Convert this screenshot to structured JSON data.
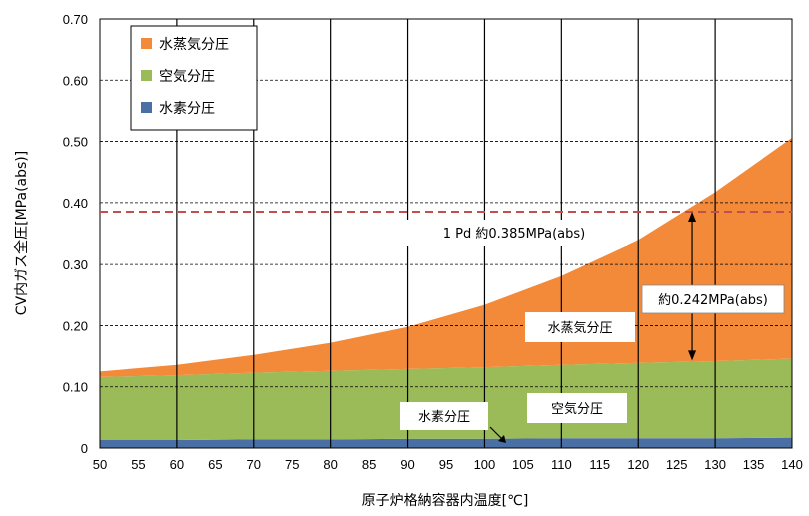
{
  "chart_data": {
    "type": "area",
    "stacked": true,
    "title": "",
    "xlabel": "原子炉格納容器内温度[℃]",
    "ylabel": "CV内ガス全圧[MPa(abs)]",
    "xlim": [
      50,
      140
    ],
    "ylim": [
      0,
      0.7
    ],
    "x_ticks": [
      "50",
      "55",
      "60",
      "65",
      "70",
      "75",
      "80",
      "85",
      "90",
      "95",
      "100",
      "105",
      "110",
      "115",
      "120",
      "125",
      "130",
      "135",
      "140"
    ],
    "y_ticks": [
      "0",
      "0.10",
      "0.20",
      "0.30",
      "0.40",
      "0.50",
      "0.60",
      "0.70"
    ],
    "grid": true,
    "legend_position": "top-left",
    "x": [
      50,
      60,
      70,
      80,
      90,
      100,
      110,
      120,
      130,
      140
    ],
    "series": [
      {
        "name": "水素分圧",
        "color": "#4a6fa5",
        "values": [
          0.013,
          0.013,
          0.014,
          0.014,
          0.015,
          0.015,
          0.016,
          0.016,
          0.016,
          0.017
        ]
      },
      {
        "name": "空気分圧",
        "color": "#9bbb59",
        "values": [
          0.103,
          0.106,
          0.109,
          0.112,
          0.114,
          0.117,
          0.12,
          0.123,
          0.126,
          0.129
        ]
      },
      {
        "name": "水蒸気分圧",
        "color": "#f38a3a",
        "values": [
          0.009,
          0.017,
          0.029,
          0.046,
          0.069,
          0.102,
          0.145,
          0.2,
          0.275,
          0.36
        ]
      }
    ],
    "reference_line": {
      "y": 0.385,
      "color": "#c0504d"
    },
    "annotations": {
      "pd_label": "1 Pd 約0.385MPa(abs)",
      "delta_label": "約0.242MPa(abs)",
      "steam_label": "水蒸気分圧",
      "air_label": "空気分圧",
      "hydrogen_label": "水素分圧"
    },
    "delta_arrow": {
      "x": 127,
      "y_from": 0.143,
      "y_to": 0.385
    }
  }
}
